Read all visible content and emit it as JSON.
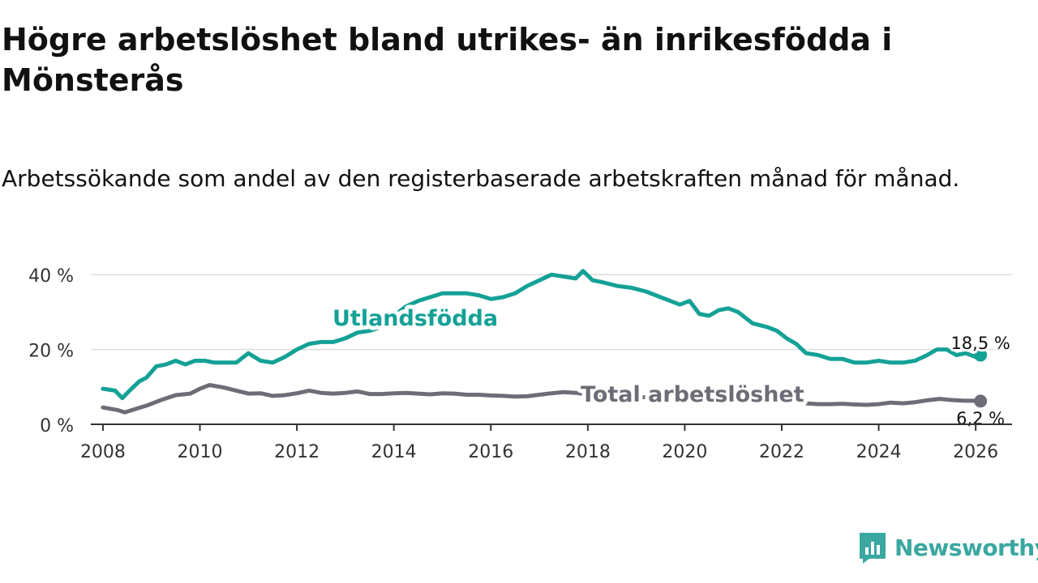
{
  "title": "Högre arbetslöshet bland utrikes- än inrikesfödda i Mönsterås",
  "subtitle": "Arbetssökande som andel av den registerbaserade arbetskraften månad för månad.",
  "brand": {
    "name": "Newsworthy",
    "color": "#3aa8a0",
    "icon": "newsworthy-logo-icon"
  },
  "colors": {
    "utlandsfodda": "#14a196",
    "total": "#6f6c77",
    "grid": "#dddddd",
    "axis": "#333333"
  },
  "chart_data": {
    "type": "line",
    "title": "Högre arbetslöshet bland utrikes- än inrikesfödda i Mönsterås",
    "xlabel": "",
    "ylabel": "",
    "xlim": [
      2007.75,
      2026.75
    ],
    "ylim": [
      0,
      42
    ],
    "grid": true,
    "x_ticks": [
      2008,
      2010,
      2012,
      2014,
      2016,
      2018,
      2020,
      2022,
      2024,
      2026
    ],
    "x_tick_labels": [
      "2008",
      "2010",
      "2012",
      "2014",
      "2016",
      "2018",
      "2020",
      "2022",
      "2024",
      "2026"
    ],
    "y_ticks": [
      0,
      20,
      40
    ],
    "y_tick_labels": [
      "0 %",
      "20 %",
      "40 %"
    ],
    "series": [
      {
        "name": "Utlandsfödda",
        "label": "Utlandsfödda",
        "end_label": "18,5 %",
        "x": [
          2008.0,
          2008.25,
          2008.4,
          2008.55,
          2008.75,
          2008.9,
          2009.1,
          2009.3,
          2009.5,
          2009.7,
          2009.9,
          2010.1,
          2010.3,
          2010.5,
          2010.75,
          2011.0,
          2011.25,
          2011.5,
          2011.75,
          2012.0,
          2012.25,
          2012.5,
          2012.75,
          2013.0,
          2013.25,
          2013.5,
          2013.75,
          2014.0,
          2014.25,
          2014.5,
          2014.75,
          2015.0,
          2015.25,
          2015.5,
          2015.75,
          2016.0,
          2016.25,
          2016.5,
          2016.75,
          2017.0,
          2017.25,
          2017.5,
          2017.75,
          2017.9,
          2018.1,
          2018.3,
          2018.6,
          2018.9,
          2019.2,
          2019.5,
          2019.7,
          2019.9,
          2020.1,
          2020.3,
          2020.5,
          2020.7,
          2020.9,
          2021.1,
          2021.4,
          2021.7,
          2021.9,
          2022.1,
          2022.3,
          2022.5,
          2022.75,
          2023.0,
          2023.25,
          2023.5,
          2023.75,
          2024.0,
          2024.25,
          2024.5,
          2024.75,
          2025.0,
          2025.2,
          2025.4,
          2025.6,
          2025.8,
          2026.0,
          2026.1
        ],
        "y": [
          9.5,
          9,
          7,
          9,
          11.5,
          12.5,
          15.5,
          16,
          17,
          16,
          17,
          17,
          16.5,
          16.5,
          16.5,
          19,
          17,
          16.5,
          18,
          20,
          21.5,
          22,
          22,
          23,
          24.5,
          25,
          26,
          29,
          31.5,
          33,
          34,
          35,
          35,
          35,
          34.5,
          33.5,
          34,
          35,
          37,
          38.5,
          40,
          39.5,
          39,
          41,
          38.5,
          38,
          37,
          36.5,
          35.5,
          34,
          33,
          32,
          33,
          29.5,
          29,
          30.5,
          31,
          30,
          27,
          26,
          25,
          23,
          21.5,
          19,
          18.5,
          17.5,
          17.5,
          16.5,
          16.5,
          17,
          16.5,
          16.5,
          17,
          18.5,
          20,
          20,
          18.5,
          19,
          18,
          18.5
        ]
      },
      {
        "name": "Total arbetslöshet",
        "label": "Total arbetslöshet",
        "end_label": "6,2 %",
        "x": [
          2008.0,
          2008.3,
          2008.45,
          2008.65,
          2008.9,
          2009.2,
          2009.5,
          2009.8,
          2010.0,
          2010.2,
          2010.5,
          2010.75,
          2011.0,
          2011.25,
          2011.5,
          2011.75,
          2012.0,
          2012.25,
          2012.5,
          2012.75,
          2013.0,
          2013.25,
          2013.5,
          2013.75,
          2014.0,
          2014.25,
          2014.5,
          2014.75,
          2015.0,
          2015.25,
          2015.5,
          2015.75,
          2016.0,
          2016.25,
          2016.5,
          2016.75,
          2017.0,
          2017.25,
          2017.5,
          2017.75,
          2018.0,
          2018.3,
          2018.6,
          2018.9,
          2019.2,
          2019.5,
          2019.8,
          2020.1,
          2020.4,
          2020.7,
          2021.0,
          2021.3,
          2021.6,
          2021.9,
          2022.2,
          2022.5,
          2022.75,
          2023.0,
          2023.25,
          2023.5,
          2023.75,
          2024.0,
          2024.25,
          2024.5,
          2024.75,
          2025.0,
          2025.25,
          2025.5,
          2025.75,
          2026.0,
          2026.1
        ],
        "y": [
          4.5,
          3.8,
          3.2,
          4,
          5,
          6.5,
          7.8,
          8.2,
          9.5,
          10.5,
          9.8,
          9,
          8.2,
          8.3,
          7.6,
          7.8,
          8.3,
          9,
          8.4,
          8.2,
          8.4,
          8.8,
          8.1,
          8.1,
          8.3,
          8.4,
          8.2,
          8,
          8.3,
          8.2,
          7.9,
          7.9,
          7.7,
          7.6,
          7.4,
          7.5,
          7.9,
          8.3,
          8.6,
          8.4,
          8,
          7.8,
          7.6,
          7.4,
          7.2,
          7,
          6.9,
          6.9,
          6.8,
          6.7,
          6.6,
          6.5,
          6.3,
          6.1,
          6,
          5.6,
          5.4,
          5.4,
          5.5,
          5.3,
          5.2,
          5.4,
          5.8,
          5.6,
          5.9,
          6.4,
          6.8,
          6.5,
          6.3,
          6.3,
          6.2
        ]
      }
    ]
  }
}
